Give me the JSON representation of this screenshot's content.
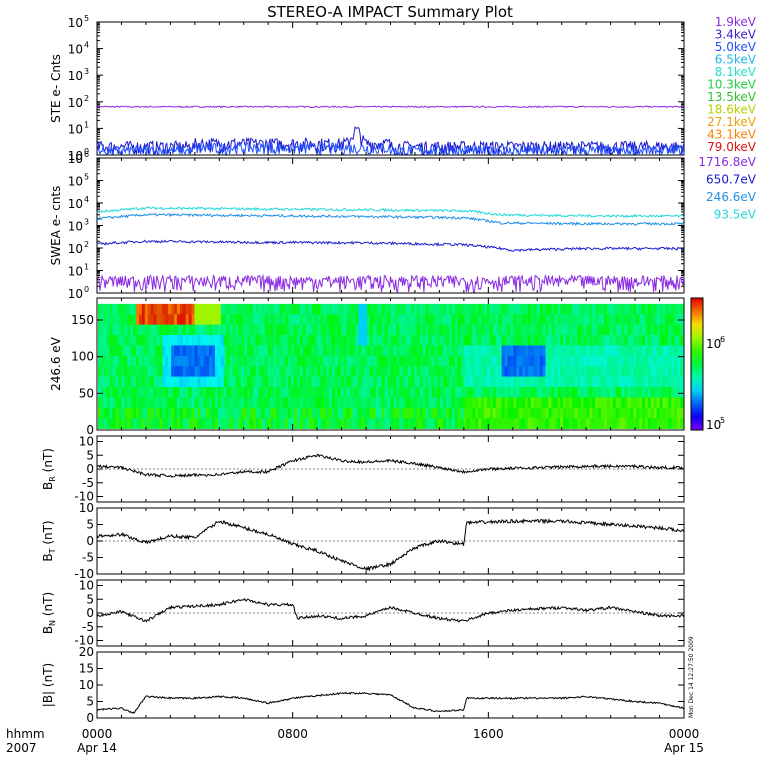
{
  "title": "STEREO-A IMPACT Summary Plot",
  "footer": {
    "time_unit": "hhmm",
    "year": "2007",
    "ticks": [
      "0000",
      "0800",
      "1600",
      "0000"
    ],
    "dates": [
      "Apr 14",
      "",
      "",
      "Apr 15"
    ]
  },
  "side_stamp": "Mon Dec 14 12:27:50 2009",
  "chart_data": [
    {
      "type": "line",
      "id": "ste",
      "ylabel": "STE e- Cnts",
      "yscale": "log",
      "ylim": [
        1,
        100000
      ],
      "x_range_hours": [
        0,
        24
      ],
      "yticks": [
        {
          "base": "10",
          "exp": "0"
        },
        {
          "base": "10",
          "exp": "1"
        },
        {
          "base": "10",
          "exp": "2"
        },
        {
          "base": "10",
          "exp": "3"
        },
        {
          "base": "10",
          "exp": "4"
        },
        {
          "base": "10",
          "exp": "5"
        }
      ],
      "legend": [
        "1.9keV",
        "3.4keV",
        "5.0keV",
        "6.5keV",
        "8.1keV",
        "10.3keV",
        "13.5keV",
        "18.6keV",
        "27.1keV",
        "43.1keV",
        "79.0keV"
      ],
      "legend_colors": [
        "#8a2be2",
        "#3a1fd0",
        "#2050ff",
        "#1fb6e6",
        "#22e0d0",
        "#20d040",
        "#30c030",
        "#b8d000",
        "#e8a000",
        "#ff8000",
        "#e01010"
      ],
      "series": [
        {
          "name": "1.9keV",
          "color": "#8a2be2",
          "baseline": 65,
          "note": "flat"
        },
        {
          "name": "3.4keV",
          "color": "#1a1ad0",
          "baseline": 1.5,
          "note": "noisy, peak ~5 near 1040"
        },
        {
          "name": "5.0keV",
          "color": "#2050ff",
          "baseline": 1.2,
          "note": "noisy"
        }
      ]
    },
    {
      "type": "line",
      "id": "swea",
      "ylabel": "SWEA e- cnts",
      "yscale": "log",
      "ylim": [
        1,
        1000000
      ],
      "x_range_hours": [
        0,
        24
      ],
      "yticks": [
        {
          "base": "10",
          "exp": "0"
        },
        {
          "base": "10",
          "exp": "1"
        },
        {
          "base": "10",
          "exp": "2"
        },
        {
          "base": "10",
          "exp": "3"
        },
        {
          "base": "10",
          "exp": "4"
        },
        {
          "base": "10",
          "exp": "5"
        },
        {
          "base": "10",
          "exp": "6"
        }
      ],
      "legend": [
        "1716.8eV",
        "650.7eV",
        "246.6eV",
        "93.5eV"
      ],
      "legend_colors": [
        "#8a2be2",
        "#1a1ad0",
        "#1f8fe6",
        "#22d8d8"
      ],
      "series": [
        {
          "name": "93.5eV",
          "color": "#22d8d8",
          "approx": [
            [
              0,
              4000
            ],
            [
              2,
              6000
            ],
            [
              6,
              5500
            ],
            [
              11,
              5000
            ],
            [
              15,
              4500
            ],
            [
              16.5,
              3000
            ],
            [
              20,
              2700
            ],
            [
              24,
              2600
            ]
          ]
        },
        {
          "name": "246.6eV",
          "color": "#1f8fe6",
          "approx": [
            [
              0,
              2000
            ],
            [
              2,
              3000
            ],
            [
              6,
              2800
            ],
            [
              11,
              2500
            ],
            [
              15,
              2200
            ],
            [
              16.5,
              1300
            ],
            [
              20,
              1200
            ],
            [
              24,
              1200
            ]
          ]
        },
        {
          "name": "650.7eV",
          "color": "#1a1ad0",
          "approx": [
            [
              0,
              150
            ],
            [
              2,
              200
            ],
            [
              6,
              180
            ],
            [
              11,
              170
            ],
            [
              15,
              140
            ],
            [
              17,
              80
            ],
            [
              20,
              95
            ],
            [
              24,
              95
            ]
          ]
        },
        {
          "name": "1716.8eV",
          "color": "#8a2be2",
          "approx": [
            [
              0,
              2
            ],
            [
              24,
              2
            ]
          ]
        }
      ]
    },
    {
      "type": "heatmap",
      "id": "pad",
      "ylabel": "246.6 eV",
      "ylim": [
        0,
        180
      ],
      "yticks": [
        "0",
        "50",
        "100",
        "150"
      ],
      "x_range_hours": [
        0,
        24
      ],
      "colorbar": {
        "scale": "log",
        "min_label": {
          "base": "10",
          "exp": "5"
        },
        "max_label": {
          "base": "10",
          "exp": "6"
        }
      }
    },
    {
      "type": "line",
      "id": "br",
      "ylabel": "BR (nT)",
      "ylabel_main": "B",
      "ylabel_sub": "R",
      "ylabel_unit": "(nT)",
      "ylim": [
        -12,
        12
      ],
      "yticks": [
        "-10",
        "-5",
        "0",
        "5",
        "10"
      ],
      "x_range_hours": [
        0,
        24
      ],
      "points": [
        [
          0,
          1
        ],
        [
          1,
          0.5
        ],
        [
          2,
          -2
        ],
        [
          3,
          -2.5
        ],
        [
          5,
          -2
        ],
        [
          6,
          -1
        ],
        [
          7,
          -1
        ],
        [
          8,
          3
        ],
        [
          9,
          5
        ],
        [
          10,
          3
        ],
        [
          11,
          2.5
        ],
        [
          12,
          3
        ],
        [
          13,
          2
        ],
        [
          15,
          -1
        ],
        [
          16,
          0
        ],
        [
          18,
          0.5
        ],
        [
          20,
          1
        ],
        [
          22,
          1
        ],
        [
          23,
          0.5
        ],
        [
          24,
          0.5
        ]
      ]
    },
    {
      "type": "line",
      "id": "bt",
      "ylabel": "BT (nT)",
      "ylabel_main": "B",
      "ylabel_sub": "T",
      "ylabel_unit": "(nT)",
      "ylim": [
        -10,
        10
      ],
      "yticks": [
        "-10",
        "-5",
        "0",
        "5",
        "10"
      ],
      "x_range_hours": [
        0,
        24
      ],
      "points": [
        [
          0,
          1.5
        ],
        [
          1,
          2
        ],
        [
          2,
          -0.5
        ],
        [
          3,
          1.5
        ],
        [
          4,
          1
        ],
        [
          5,
          6
        ],
        [
          6,
          4
        ],
        [
          7,
          2
        ],
        [
          8,
          -1
        ],
        [
          9,
          -3
        ],
        [
          10,
          -6
        ],
        [
          11,
          -8.5
        ],
        [
          12,
          -7
        ],
        [
          13,
          -2
        ],
        [
          14,
          0
        ],
        [
          15,
          -1
        ],
        [
          15.1,
          5.5
        ],
        [
          17,
          6
        ],
        [
          19,
          6
        ],
        [
          21,
          5
        ],
        [
          23,
          4
        ],
        [
          24,
          3
        ]
      ]
    },
    {
      "type": "line",
      "id": "bn",
      "ylabel": "BN (nT)",
      "ylabel_main": "B",
      "ylabel_sub": "N",
      "ylabel_unit": "(nT)",
      "ylim": [
        -12,
        12
      ],
      "yticks": [
        "-10",
        "-5",
        "0",
        "5",
        "10"
      ],
      "x_range_hours": [
        0,
        24
      ],
      "points": [
        [
          0,
          -1
        ],
        [
          1,
          0.5
        ],
        [
          2,
          -3
        ],
        [
          3,
          2
        ],
        [
          5,
          3
        ],
        [
          6,
          5
        ],
        [
          7,
          3
        ],
        [
          8,
          3
        ],
        [
          8.2,
          -2
        ],
        [
          9,
          -1
        ],
        [
          10,
          -2
        ],
        [
          11,
          -1
        ],
        [
          12,
          2
        ],
        [
          13,
          0
        ],
        [
          14,
          -2
        ],
        [
          15,
          -3
        ],
        [
          16,
          0
        ],
        [
          17,
          1
        ],
        [
          19,
          2
        ],
        [
          20,
          1
        ],
        [
          21,
          2
        ],
        [
          23,
          -1
        ],
        [
          24,
          -1
        ]
      ]
    },
    {
      "type": "line",
      "id": "bmag",
      "ylabel": "|B| (nT)",
      "ylim": [
        0,
        20
      ],
      "yticks": [
        "0",
        "5",
        "10",
        "15",
        "20"
      ],
      "x_range_hours": [
        0,
        24
      ],
      "points": [
        [
          0,
          2.5
        ],
        [
          1,
          3
        ],
        [
          1.5,
          1.5
        ],
        [
          2,
          6.5
        ],
        [
          3,
          6
        ],
        [
          4,
          6
        ],
        [
          5,
          6.5
        ],
        [
          6,
          6
        ],
        [
          7,
          4.5
        ],
        [
          8,
          6
        ],
        [
          10,
          7.5
        ],
        [
          11,
          7.5
        ],
        [
          12,
          7
        ],
        [
          13,
          3
        ],
        [
          14,
          2
        ],
        [
          15,
          2.5
        ],
        [
          15.1,
          6
        ],
        [
          17,
          6
        ],
        [
          19,
          6
        ],
        [
          20,
          6.5
        ],
        [
          22,
          5
        ],
        [
          23,
          4.5
        ],
        [
          24,
          3
        ]
      ]
    }
  ]
}
